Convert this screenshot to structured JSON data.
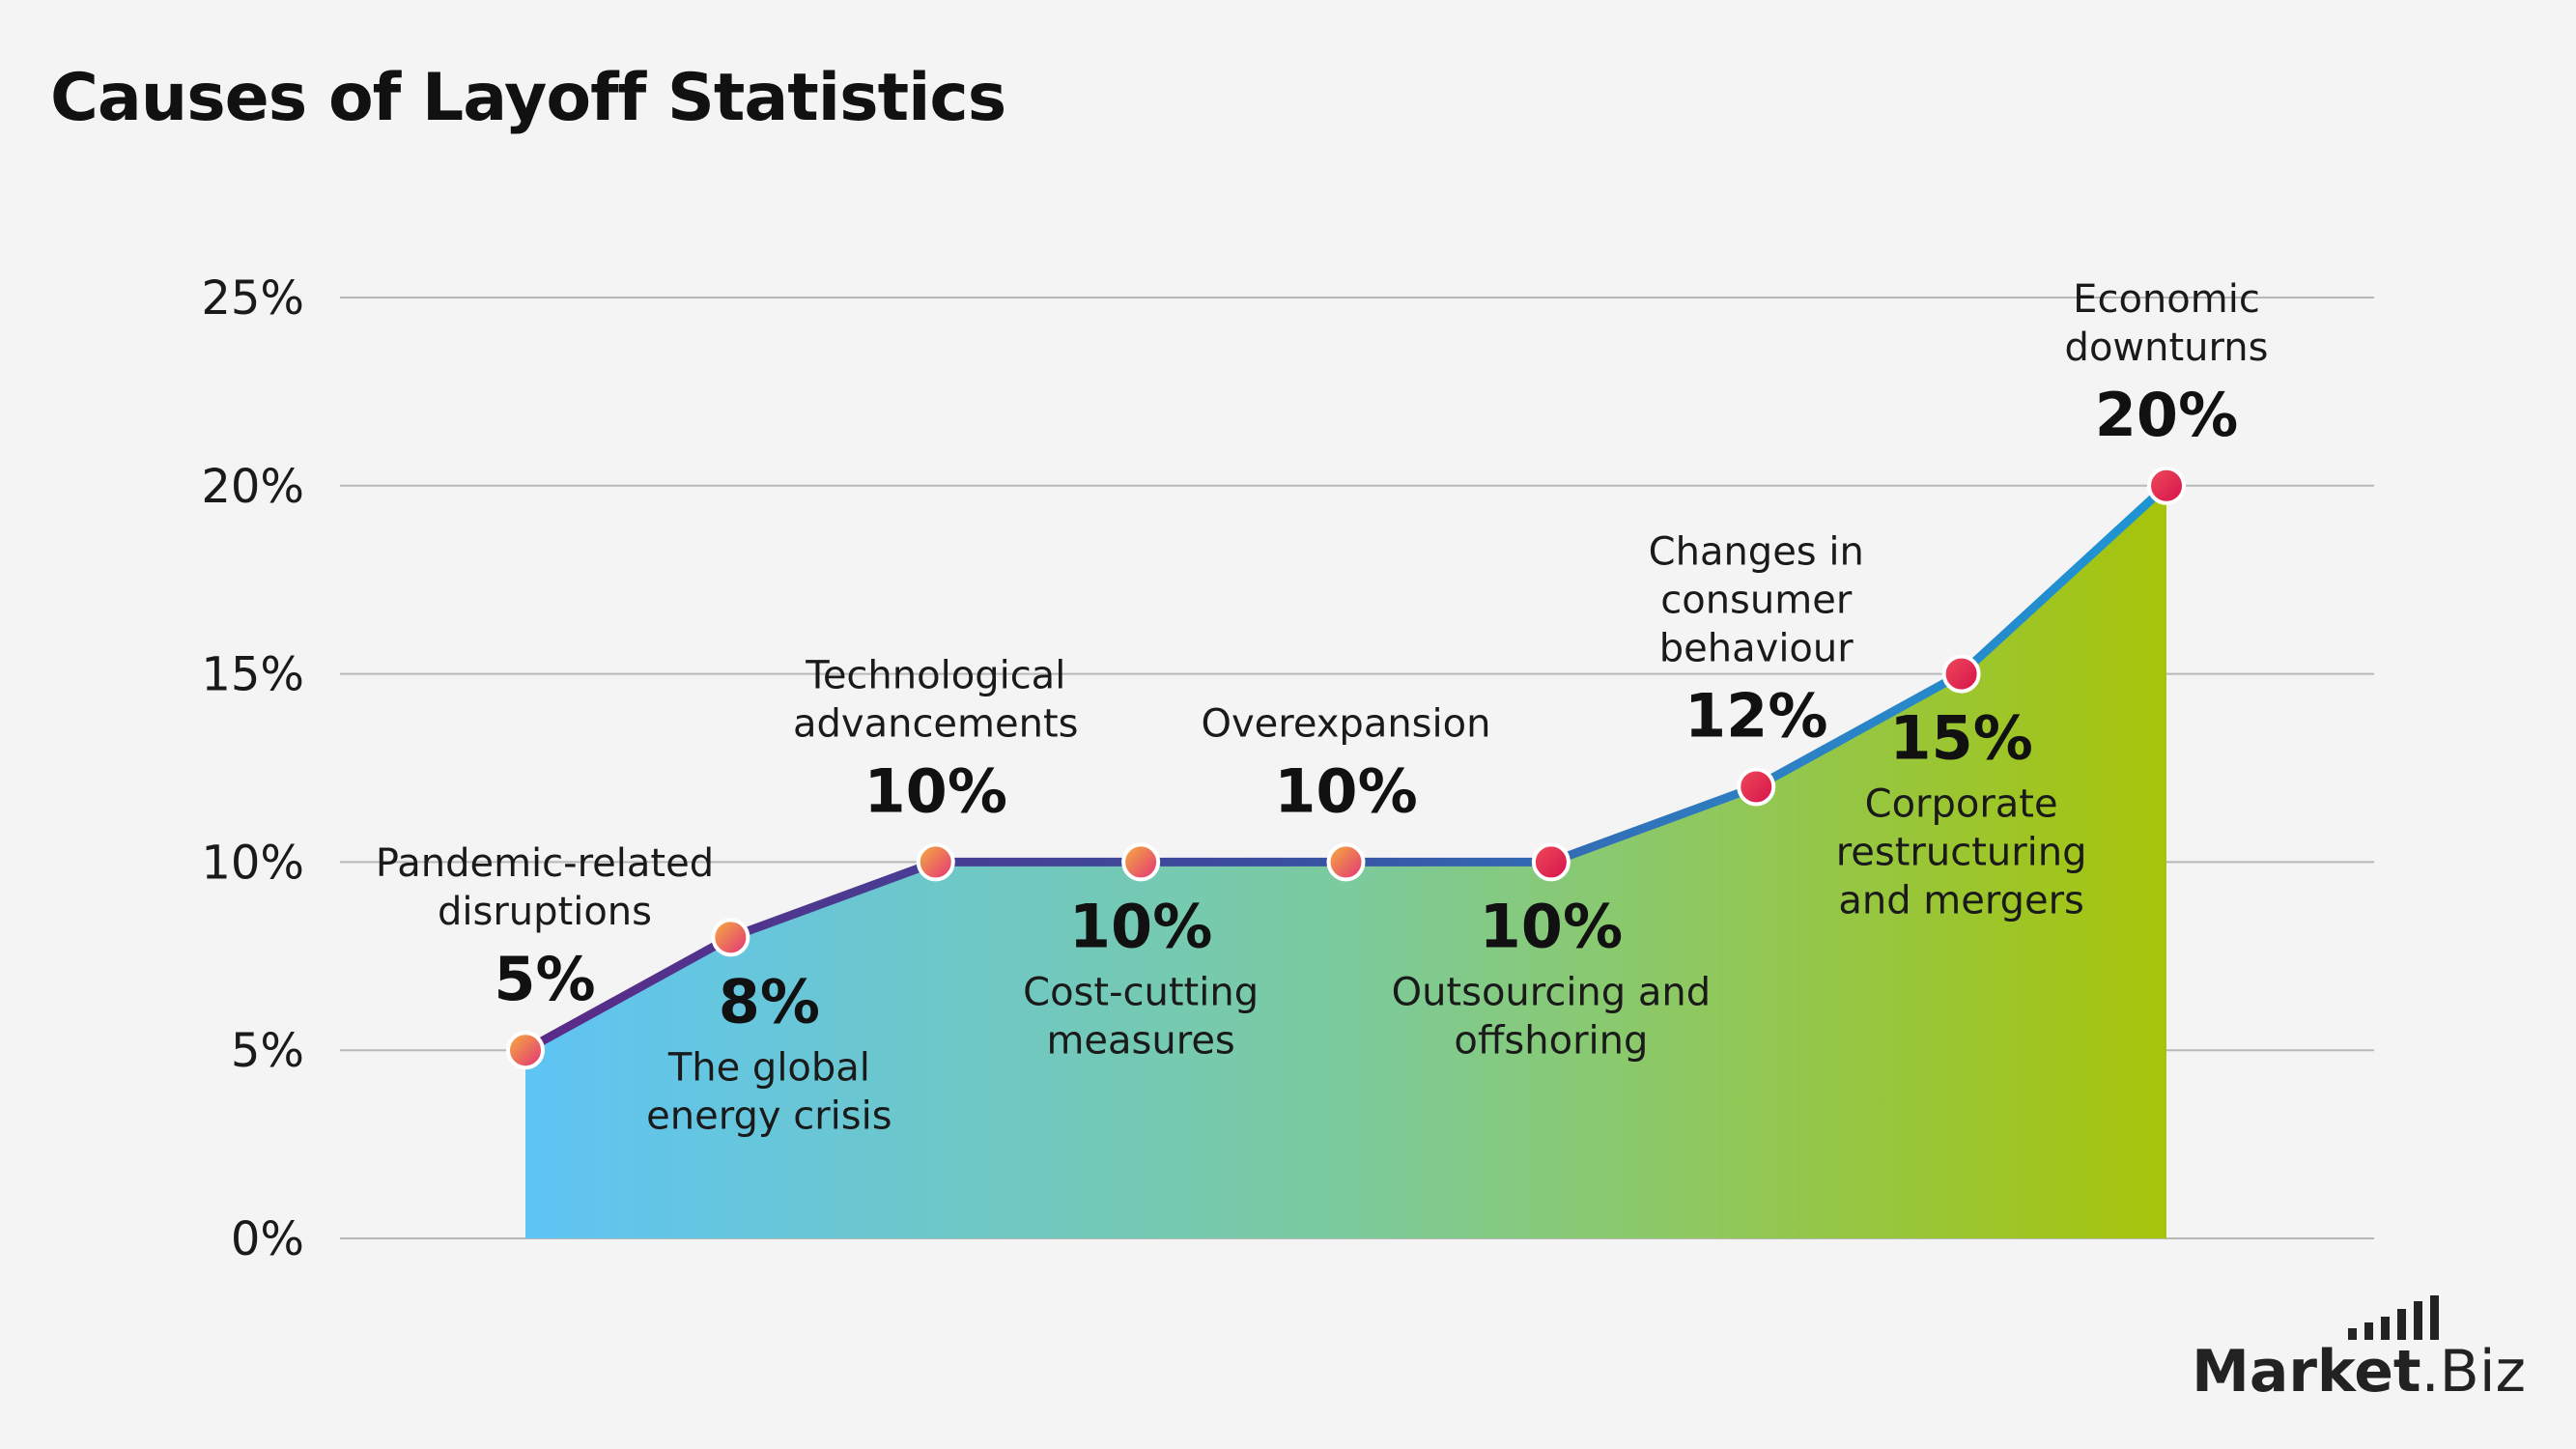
{
  "title": "Causes of Layoff Statistics",
  "logo": {
    "bold": "Market",
    "light": ".Biz"
  },
  "colors": {
    "background": "#f4f4f4",
    "grid": "#b8b8b8",
    "area_gradient": [
      "#5ec4f4",
      "#7ccb9e",
      "#a6c40a"
    ],
    "line_gradient": [
      "#5a2a86",
      "#2d7fc3",
      "#1d95d4"
    ],
    "marker_gradient": [
      "#f3a542",
      "#e2185b"
    ]
  },
  "chart_data": {
    "type": "area",
    "title": "Causes of Layoff Statistics",
    "xlabel": "",
    "ylabel": "",
    "ylim": [
      0,
      25
    ],
    "yticks": [
      0,
      5,
      10,
      15,
      20,
      25
    ],
    "ytick_labels": [
      "0%",
      "5%",
      "10%",
      "15%",
      "20%",
      "25%"
    ],
    "grid": true,
    "points": [
      {
        "category": [
          "Pandemic-related",
          "disruptions"
        ],
        "value": 5,
        "label": "5%",
        "label_pos": "above"
      },
      {
        "category": [
          "The global",
          "energy crisis"
        ],
        "value": 8,
        "label": "8%",
        "label_pos": "below"
      },
      {
        "category": [
          "Technological",
          "advancements"
        ],
        "value": 10,
        "label": "10%",
        "label_pos": "above"
      },
      {
        "category": [
          "Cost-cutting",
          "measures"
        ],
        "value": 10,
        "label": "10%",
        "label_pos": "below"
      },
      {
        "category": [
          "Overexpansion"
        ],
        "value": 10,
        "label": "10%",
        "label_pos": "above"
      },
      {
        "category": [
          "Outsourcing and",
          "offshoring"
        ],
        "value": 10,
        "label": "10%",
        "label_pos": "below"
      },
      {
        "category": [
          "Changes in",
          "consumer",
          "behaviour"
        ],
        "value": 12,
        "label": "12%",
        "label_pos": "above"
      },
      {
        "category": [
          "Corporate",
          "restructuring",
          "and mergers"
        ],
        "value": 15,
        "label": "15%",
        "label_pos": "below"
      },
      {
        "category": [
          "Economic",
          "downturns"
        ],
        "value": 20,
        "label": "20%",
        "label_pos": "above"
      }
    ]
  }
}
